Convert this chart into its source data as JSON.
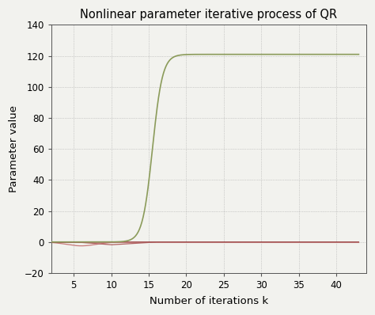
{
  "title": "Nonlinear parameter iterative process of QR",
  "xlabel": "Number of iterations k",
  "ylabel": "Parameter value",
  "xlim": [
    2,
    44
  ],
  "ylim": [
    -20,
    140
  ],
  "xticks": [
    5,
    10,
    15,
    20,
    25,
    30,
    35,
    40
  ],
  "yticks": [
    -20,
    0,
    20,
    40,
    60,
    80,
    100,
    120,
    140
  ],
  "figsize": [
    4.74,
    3.98
  ],
  "dpi": 100,
  "bg_color": "#f2f2ee",
  "grid_color": "#aaaaaa",
  "line_green_color": "#8b9b5a",
  "line_red1_color": "#c87878",
  "line_red2_color": "#b06060",
  "line_red3_color": "#a05555"
}
